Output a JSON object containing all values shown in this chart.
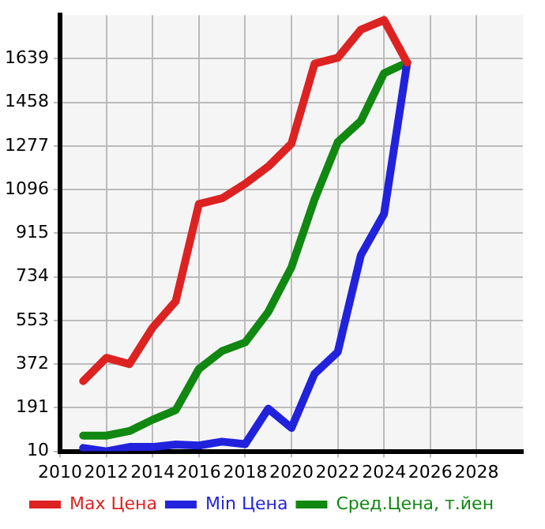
{
  "chart_data": {
    "type": "line",
    "x": [
      2011,
      2012,
      2013,
      2014,
      2015,
      2016,
      2017,
      2018,
      2019,
      2020,
      2021,
      2022,
      2023,
      2024,
      2025
    ],
    "series": [
      {
        "name": "Max Цена",
        "color": "#dd2222",
        "values": [
          301,
          398,
          372,
          523,
          633,
          1036,
          1060,
          1120,
          1192,
          1287,
          1619,
          1643,
          1760,
          1800,
          1623
        ]
      },
      {
        "name": "Min Цена",
        "color": "#2222dd",
        "values": [
          24,
          10,
          28,
          28,
          38,
          34,
          50,
          40,
          187,
          107,
          332,
          422,
          824,
          995,
          1623
        ]
      },
      {
        "name": "Сред.Цена, т.йен",
        "color": "#118811",
        "values": [
          75,
          75,
          94,
          141,
          181,
          352,
          426,
          462,
          589,
          774,
          1056,
          1293,
          1381,
          1579,
          1623
        ]
      }
    ],
    "xlim": [
      2010,
      2030
    ],
    "xticks": [
      2010,
      2012,
      2014,
      2016,
      2018,
      2020,
      2022,
      2024,
      2026,
      2028
    ],
    "ylim": [
      10,
      1820
    ],
    "yticks": [
      10,
      191,
      372,
      553,
      734,
      915,
      1096,
      1277,
      1458,
      1639
    ],
    "grid": true,
    "legend": "bottom",
    "marker": "none",
    "line_style": "solid"
  }
}
